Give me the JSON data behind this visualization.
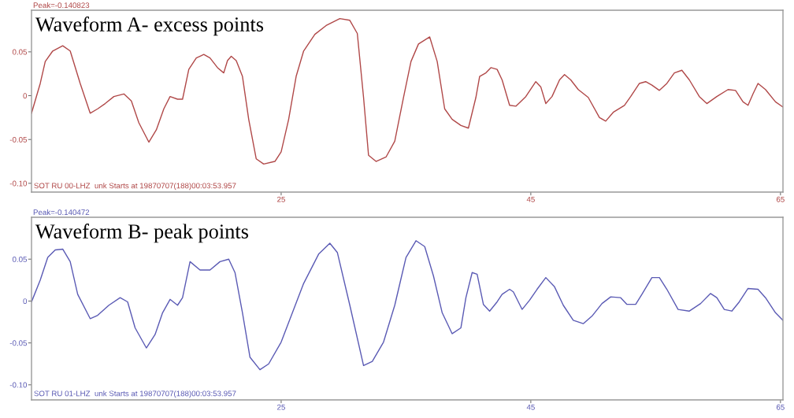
{
  "chart_data": [
    {
      "type": "line",
      "title": "Waveform A- excess points",
      "annotations": [
        "Peak=-0.140823",
        "SOT RU 00-LHZ  unk Starts at 19870707(188)00:03:53.957"
      ],
      "xlim": [
        5,
        65.2
      ],
      "xticks": [
        25,
        45,
        65
      ],
      "ylim": [
        -0.11,
        0.0975
      ],
      "yticks": [
        {
          "value": 0.05,
          "label": "0.05"
        },
        0,
        {
          "value": -0.05,
          "label": "-0.05"
        },
        {
          "value": -0.1,
          "label": "-0.10"
        }
      ],
      "grid": false,
      "legend": false,
      "series": [
        {
          "color": "#b04848",
          "x": [
            5.0,
            5.7,
            6.1,
            6.7,
            7.5,
            8.1,
            8.9,
            9.7,
            10.3,
            10.9,
            11.6,
            12.4,
            13.0,
            13.6,
            14.4,
            15.0,
            15.6,
            16.1,
            16.7,
            17.1,
            17.6,
            18.2,
            18.8,
            19.3,
            19.9,
            20.4,
            20.7,
            21.0,
            21.4,
            21.9,
            22.4,
            23.0,
            23.6,
            24.5,
            25.0,
            25.6,
            26.2,
            26.8,
            27.7,
            28.6,
            29.7,
            30.5,
            31.1,
            31.6,
            32.0,
            32.6,
            33.4,
            34.1,
            34.8,
            35.4,
            36.0,
            36.9,
            37.5,
            38.1,
            38.7,
            39.4,
            40.0,
            40.6,
            40.9,
            41.4,
            41.8,
            42.3,
            42.7,
            43.3,
            43.8,
            44.6,
            45.4,
            45.8,
            46.2,
            46.7,
            47.3,
            47.7,
            48.2,
            48.8,
            49.6,
            50.5,
            51.0,
            51.6,
            52.5,
            53.0,
            53.7,
            54.2,
            54.7,
            55.3,
            55.9,
            56.5,
            57.1,
            57.7,
            58.5,
            59.1,
            59.9,
            60.8,
            61.4,
            62.0,
            62.4,
            62.8,
            63.2,
            63.8,
            64.6,
            65.2
          ],
          "values": [
            -0.02,
            0.014,
            0.039,
            0.051,
            0.057,
            0.051,
            0.014,
            -0.02,
            -0.015,
            -0.009,
            -0.001,
            0.002,
            -0.006,
            -0.031,
            -0.053,
            -0.039,
            -0.015,
            -0.001,
            -0.004,
            -0.004,
            0.03,
            0.043,
            0.047,
            0.043,
            0.032,
            0.026,
            0.04,
            0.045,
            0.04,
            0.022,
            -0.027,
            -0.072,
            -0.078,
            -0.075,
            -0.064,
            -0.027,
            0.022,
            0.051,
            0.07,
            0.08,
            0.088,
            0.086,
            0.071,
            -0.002,
            -0.068,
            -0.075,
            -0.07,
            -0.052,
            -0.002,
            0.039,
            0.059,
            0.067,
            0.039,
            -0.015,
            -0.027,
            -0.034,
            -0.037,
            -0.002,
            0.022,
            0.026,
            0.032,
            0.03,
            0.018,
            -0.011,
            -0.012,
            -0.001,
            0.016,
            0.01,
            -0.009,
            -0.001,
            0.018,
            0.024,
            0.018,
            0.007,
            -0.002,
            -0.025,
            -0.029,
            -0.019,
            -0.011,
            -0.001,
            0.014,
            0.016,
            0.012,
            0.006,
            0.014,
            0.026,
            0.029,
            0.018,
            -0.001,
            -0.009,
            -0.001,
            0.007,
            0.006,
            -0.007,
            -0.011,
            0.002,
            0.014,
            0.007,
            -0.007,
            -0.013
          ]
        }
      ]
    },
    {
      "type": "line",
      "title": "Waveform B- peak points",
      "annotations": [
        "Peak=-0.140472",
        "SOT RU 01-LHZ  unk Starts at 19870707(188)00:03:53.957"
      ],
      "xlim": [
        5,
        65.2
      ],
      "xticks": [
        25,
        45,
        65
      ],
      "ylim": [
        -0.118,
        0.1
      ],
      "yticks": [
        {
          "value": 0.05,
          "label": "0.05"
        },
        0,
        {
          "value": -0.05,
          "label": "-0.05"
        },
        {
          "value": -0.1,
          "label": "-0.10"
        }
      ],
      "grid": false,
      "legend": false,
      "series": [
        {
          "color": "#5a5ab4",
          "x": [
            5.0,
            5.7,
            6.3,
            6.9,
            7.5,
            8.1,
            8.7,
            9.7,
            10.3,
            11.2,
            12.1,
            12.7,
            13.3,
            14.2,
            14.9,
            15.5,
            16.1,
            16.7,
            17.1,
            17.7,
            18.5,
            19.3,
            20.1,
            20.8,
            21.3,
            21.9,
            22.5,
            23.3,
            24.0,
            25.0,
            25.9,
            26.8,
            28.0,
            28.9,
            29.5,
            30.5,
            31.6,
            32.3,
            33.2,
            34.1,
            35.0,
            35.8,
            36.5,
            37.2,
            37.9,
            38.7,
            39.4,
            39.8,
            40.3,
            40.7,
            41.2,
            41.7,
            42.3,
            42.7,
            43.3,
            43.6,
            44.3,
            44.9,
            45.5,
            46.2,
            46.9,
            47.6,
            48.4,
            49.2,
            49.9,
            50.7,
            51.4,
            52.2,
            52.7,
            53.4,
            53.9,
            54.7,
            55.3,
            55.9,
            56.8,
            57.7,
            58.6,
            59.4,
            59.9,
            60.5,
            61.1,
            61.7,
            62.4,
            63.2,
            63.8,
            64.6,
            65.2
          ],
          "values": [
            -0.001,
            0.025,
            0.052,
            0.061,
            0.062,
            0.047,
            0.008,
            -0.021,
            -0.017,
            -0.005,
            0.004,
            -0.001,
            -0.032,
            -0.056,
            -0.04,
            -0.014,
            0.002,
            -0.005,
            0.004,
            0.047,
            0.037,
            0.037,
            0.047,
            0.05,
            0.034,
            -0.014,
            -0.067,
            -0.082,
            -0.075,
            -0.049,
            -0.014,
            0.021,
            0.056,
            0.069,
            0.058,
            -0.005,
            -0.077,
            -0.072,
            -0.049,
            -0.005,
            0.052,
            0.072,
            0.065,
            0.03,
            -0.014,
            -0.039,
            -0.032,
            0.004,
            0.034,
            0.032,
            -0.004,
            -0.012,
            -0.001,
            0.008,
            0.014,
            0.011,
            -0.01,
            0.001,
            0.014,
            0.028,
            0.017,
            -0.005,
            -0.023,
            -0.027,
            -0.018,
            -0.003,
            0.005,
            0.004,
            -0.004,
            -0.004,
            0.008,
            0.028,
            0.028,
            0.014,
            -0.01,
            -0.012,
            -0.003,
            0.009,
            0.004,
            -0.01,
            -0.012,
            -0.001,
            0.015,
            0.014,
            0.004,
            -0.014,
            -0.023
          ]
        }
      ]
    }
  ]
}
